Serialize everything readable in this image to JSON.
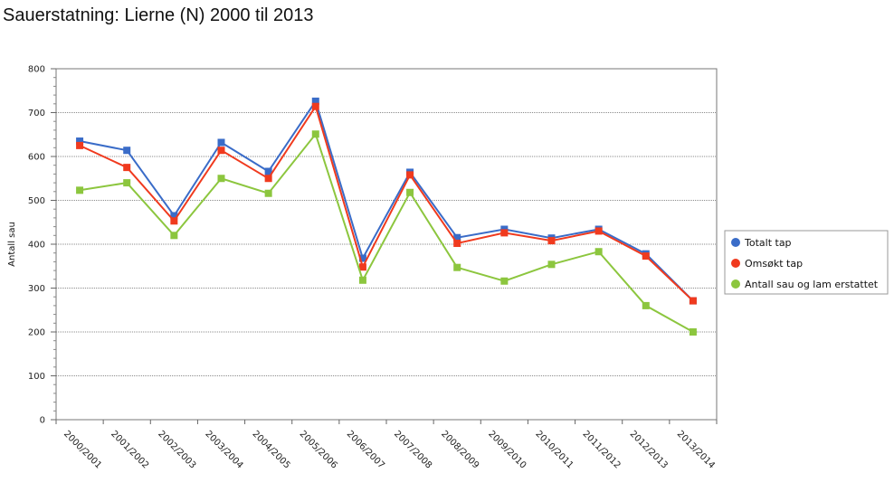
{
  "page": {
    "title": "Sauerstatning: Lierne (N) 2000 til 2013"
  },
  "chart_data": {
    "type": "line",
    "title": "Sauerstatning: Lierne (N) 2000 til 2013",
    "xlabel": "",
    "ylabel": "Antall sau",
    "ylim": [
      0,
      800
    ],
    "yticks": [
      0,
      100,
      200,
      300,
      400,
      500,
      600,
      700,
      800
    ],
    "grid": "horizontal dotted",
    "legend_position": "right",
    "categories": [
      "2000/2001",
      "2001/2002",
      "2002/2003",
      "2003/2004",
      "2004/2005",
      "2005/2006",
      "2006/2007",
      "2007/2008",
      "2008/2009",
      "2009/2010",
      "2010/2011",
      "2011/2012",
      "2012/2013",
      "2013/2014"
    ],
    "series": [
      {
        "name": "Totalt tap",
        "color": "#3a6cc8",
        "values": [
          635,
          614,
          465,
          632,
          566,
          726,
          368,
          564,
          415,
          434,
          414,
          434,
          378,
          271
        ]
      },
      {
        "name": "Omsøkt tap",
        "color": "#f03a1e",
        "values": [
          625,
          575,
          453,
          614,
          550,
          714,
          348,
          558,
          402,
          426,
          408,
          430,
          373,
          271
        ]
      },
      {
        "name": "Antall sau og lam erstattet",
        "color": "#8cc63e",
        "values": [
          523,
          540,
          420,
          550,
          516,
          651,
          318,
          518,
          347,
          316,
          354,
          383,
          260,
          200
        ]
      }
    ]
  }
}
